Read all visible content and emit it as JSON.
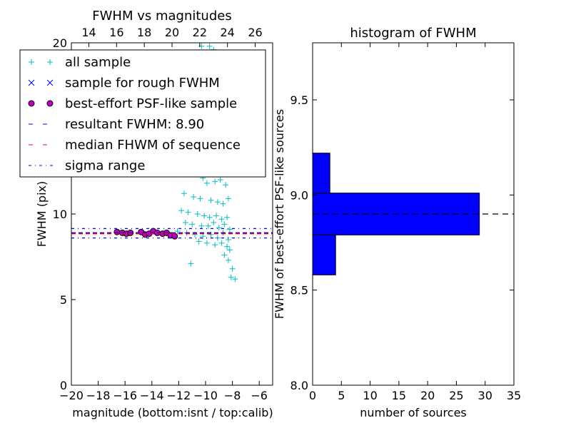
{
  "chart_data": [
    {
      "type": "scatter",
      "title": "FWHM vs magnitudes",
      "xlabel": "magnitude (bottom:isnt / top:calib)",
      "ylabel": "FWHM (pix)",
      "xlim": [
        -20,
        -5
      ],
      "ylim": [
        0,
        20
      ],
      "x_ticks": [
        "−20",
        "−18",
        "−16",
        "−14",
        "−12",
        "−10",
        "−8",
        "−6"
      ],
      "x_tick_values": [
        -20,
        -18,
        -16,
        -14,
        -12,
        -10,
        -8,
        -6
      ],
      "y_ticks": [
        "0",
        "5",
        "10",
        "20"
      ],
      "y_tick_values": [
        0,
        5,
        10,
        20
      ],
      "top_axis_ticks": [
        "14",
        "16",
        "18",
        "20",
        "22",
        "24",
        "26"
      ],
      "top_axis_values": [
        14,
        16,
        18,
        20,
        22,
        24,
        26
      ],
      "legend_position": "upper-left",
      "legend": [
        {
          "label": "all sample",
          "marker": "plus",
          "color": "#00bfbf"
        },
        {
          "label": "sample for rough FWHM",
          "marker": "x",
          "color": "#0000ff"
        },
        {
          "label": "best-effort PSF-like sample",
          "marker": "circle",
          "color": "#bf00bf"
        },
        {
          "label": "resultant FWHM: 8.90",
          "marker": "dashed",
          "color": "#0000ff"
        },
        {
          "label": "median FHWM of sequence",
          "marker": "dashed",
          "color": "#ff0000"
        },
        {
          "label": "sigma range",
          "marker": "dashdot",
          "color": "#0000ff"
        }
      ],
      "resultant_fwhm": 8.9,
      "median_fwhm": 8.85,
      "sigma_range": [
        8.6,
        9.15
      ],
      "series": [
        {
          "name": "all sample",
          "color": "#00bfbf",
          "points": [
            [
              -10.3,
              19.8
            ],
            [
              -9.7,
              19.8
            ],
            [
              -9.4,
              19.6
            ],
            [
              -10.8,
              17.5
            ],
            [
              -10.1,
              16.8
            ],
            [
              -9.2,
              16.5
            ],
            [
              -9.8,
              15.6
            ],
            [
              -10.5,
              15.0
            ],
            [
              -9.0,
              14.8
            ],
            [
              -10.0,
              14.2
            ],
            [
              -9.5,
              13.9
            ],
            [
              -8.6,
              13.6
            ],
            [
              -11.2,
              12.6
            ],
            [
              -10.7,
              12.3
            ],
            [
              -10.2,
              12.1
            ],
            [
              -9.9,
              11.8
            ],
            [
              -9.3,
              11.9
            ],
            [
              -8.9,
              12.0
            ],
            [
              -8.5,
              11.7
            ],
            [
              -11.6,
              11.2
            ],
            [
              -10.9,
              11.0
            ],
            [
              -10.4,
              10.9
            ],
            [
              -9.6,
              10.8
            ],
            [
              -9.1,
              10.7
            ],
            [
              -8.7,
              10.6
            ],
            [
              -8.3,
              10.9
            ],
            [
              -11.8,
              10.2
            ],
            [
              -11.3,
              10.1
            ],
            [
              -10.6,
              10.0
            ],
            [
              -10.1,
              9.9
            ],
            [
              -9.7,
              9.8
            ],
            [
              -9.2,
              9.9
            ],
            [
              -8.8,
              9.7
            ],
            [
              -8.4,
              9.8
            ],
            [
              -11.5,
              9.5
            ],
            [
              -11.0,
              9.4
            ],
            [
              -10.3,
              9.3
            ],
            [
              -9.8,
              9.3
            ],
            [
              -9.4,
              9.5
            ],
            [
              -9.0,
              9.2
            ],
            [
              -8.6,
              9.4
            ],
            [
              -8.2,
              9.1
            ],
            [
              -12.1,
              9.0
            ],
            [
              -11.4,
              8.9
            ],
            [
              -10.8,
              8.8
            ],
            [
              -10.2,
              8.7
            ],
            [
              -9.6,
              8.8
            ],
            [
              -9.1,
              8.6
            ],
            [
              -8.7,
              8.9
            ],
            [
              -8.3,
              8.5
            ],
            [
              -10.5,
              8.4
            ],
            [
              -9.9,
              8.3
            ],
            [
              -9.3,
              8.2
            ],
            [
              -8.8,
              8.3
            ],
            [
              -8.4,
              8.1
            ],
            [
              -8.2,
              7.9
            ],
            [
              -8.6,
              7.6
            ],
            [
              -11.1,
              7.1
            ],
            [
              -8.3,
              7.3
            ],
            [
              -8.0,
              6.8
            ],
            [
              -8.1,
              6.3
            ],
            [
              -7.8,
              6.2
            ]
          ]
        },
        {
          "name": "best-effort PSF-like sample",
          "color": "#bf00bf",
          "points": [
            [
              -16.6,
              8.95
            ],
            [
              -16.2,
              8.9
            ],
            [
              -15.9,
              8.85
            ],
            [
              -15.6,
              8.9
            ],
            [
              -14.8,
              8.95
            ],
            [
              -14.5,
              8.8
            ],
            [
              -14.2,
              8.85
            ],
            [
              -13.9,
              9.0
            ],
            [
              -13.6,
              8.9
            ],
            [
              -13.2,
              8.85
            ],
            [
              -12.9,
              8.9
            ],
            [
              -12.6,
              8.75
            ],
            [
              -12.3,
              8.7
            ]
          ]
        }
      ]
    },
    {
      "type": "bar",
      "orientation": "horizontal",
      "title": "histogram of FWHM",
      "xlabel": "number of sources",
      "ylabel": "FWHM of best-effort PSF-like sources",
      "xlim": [
        0,
        35
      ],
      "ylim": [
        8.0,
        9.8
      ],
      "x_ticks": [
        "0",
        "5",
        "10",
        "15",
        "20",
        "25",
        "30",
        "35"
      ],
      "x_tick_values": [
        0,
        5,
        10,
        15,
        20,
        25,
        30,
        35
      ],
      "y_ticks": [
        "8.0",
        "8.5",
        "9.0",
        "9.5"
      ],
      "y_tick_values": [
        8.0,
        8.5,
        9.0,
        9.5
      ],
      "bins": [
        {
          "low": 8.58,
          "high": 8.79,
          "count": 4
        },
        {
          "low": 8.79,
          "high": 9.01,
          "count": 29
        },
        {
          "low": 9.01,
          "high": 9.22,
          "count": 3
        }
      ],
      "reference_line": 8.9,
      "bar_color": "#0000ff"
    }
  ]
}
